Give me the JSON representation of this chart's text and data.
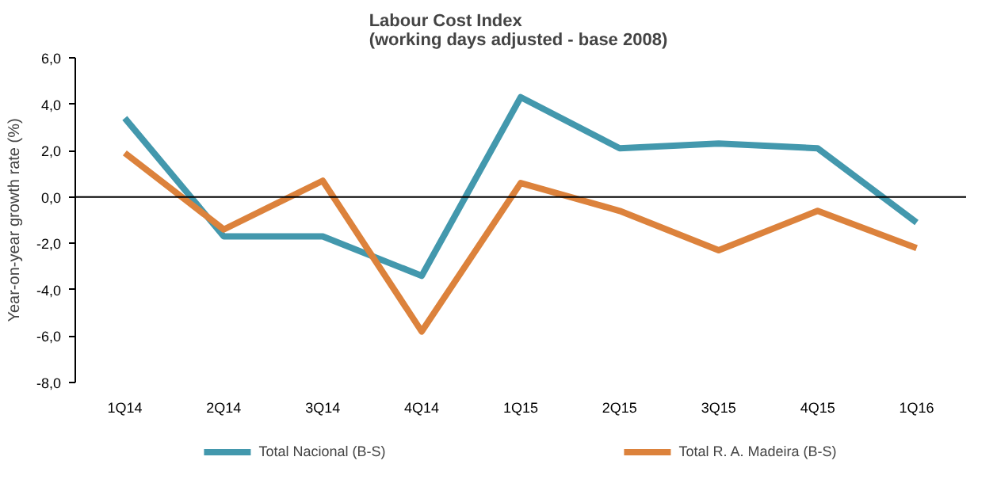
{
  "chart_data": {
    "type": "line",
    "title": "Labour Cost Index\n(working days adjusted  - base 2008)",
    "ylabel": "Year-on-year growth rate (%)",
    "categories": [
      "1Q14",
      "2Q14",
      "3Q14",
      "4Q14",
      "1Q15",
      "2Q15",
      "3Q15",
      "4Q15",
      "1Q16"
    ],
    "series": [
      {
        "name": "Total Nacional (B-S)",
        "color": "#4398ad",
        "values": [
          3.4,
          -1.7,
          -1.7,
          -3.4,
          4.3,
          2.1,
          2.3,
          2.1,
          -1.1
        ]
      },
      {
        "name": "Total R. A. Madeira (B-S)",
        "color": "#dc823c",
        "values": [
          1.9,
          -1.4,
          0.7,
          -5.8,
          0.6,
          -0.6,
          -2.3,
          -0.6,
          -2.2
        ]
      }
    ],
    "ylim": [
      -8,
      6
    ],
    "yticks": [
      {
        "value": -8,
        "label": "-8,0"
      },
      {
        "value": -6,
        "label": "-6,0"
      },
      {
        "value": -4,
        "label": "-4,0"
      },
      {
        "value": -2,
        "label": "-2,0"
      },
      {
        "value": 0,
        "label": "0,0"
      },
      {
        "value": 2,
        "label": "2,0"
      },
      {
        "value": 4,
        "label": "4,0"
      },
      {
        "value": 6,
        "label": "6,0"
      }
    ],
    "ref_lines": [
      {
        "axis": "y",
        "value": 0,
        "color": "#000000"
      }
    ],
    "grid": false,
    "legend": "bottom",
    "marker": "none",
    "line_style": "solid"
  }
}
